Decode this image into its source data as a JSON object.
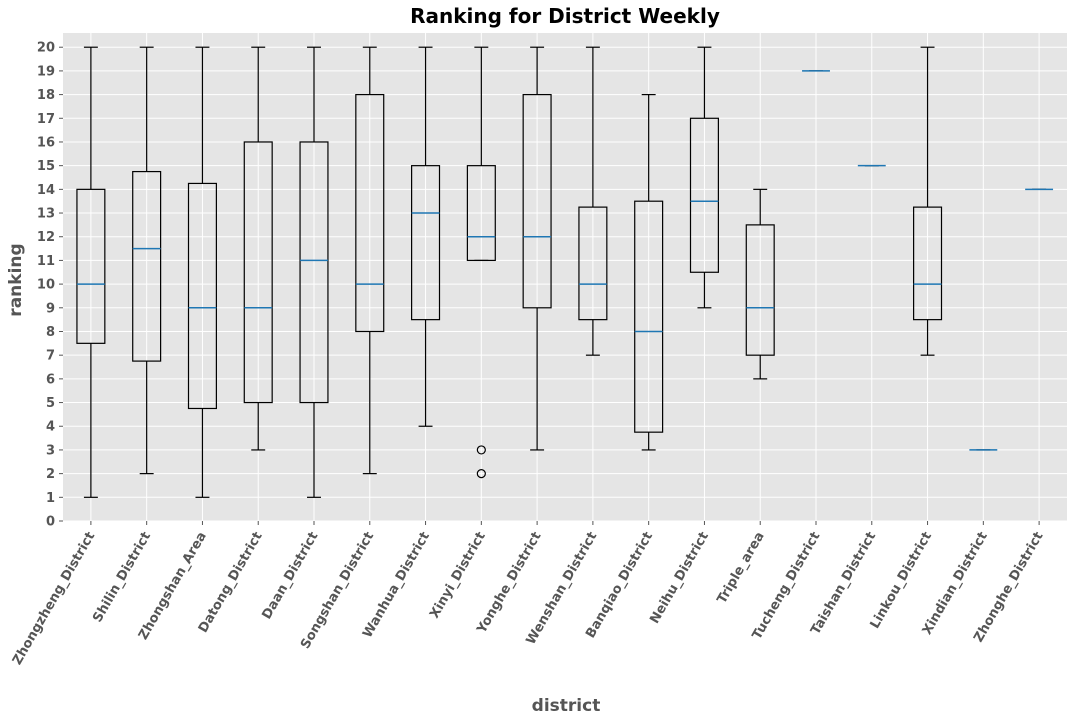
{
  "chart_data": {
    "type": "boxplot",
    "title": "Ranking for District Weekly",
    "xlabel": "district",
    "ylabel": "ranking",
    "ylim": [
      0,
      20.6
    ],
    "yticks": [
      0,
      1,
      2,
      3,
      4,
      5,
      6,
      7,
      8,
      9,
      10,
      11,
      12,
      13,
      14,
      15,
      16,
      17,
      18,
      19,
      20
    ],
    "grid": true,
    "categories": [
      "Zhongzheng_District",
      "Shilin_District",
      "Zhongshan_Area",
      "Datong_District",
      "Daan_District",
      "Songshan_District",
      "Wanhua_District",
      "Xinyi_District",
      "Yonghe_District",
      "Wenshan_District",
      "Banqiao_District",
      "Neihu_District",
      "Triple_area",
      "Tucheng_District",
      "Taishan_District",
      "Linkou_District",
      "Xindian_District",
      "Zhonghe_District"
    ],
    "boxes": [
      {
        "whislo": 1,
        "q1": 7.5,
        "med": 10,
        "q3": 14,
        "whishi": 20,
        "fliers": []
      },
      {
        "whislo": 2,
        "q1": 6.75,
        "med": 11.5,
        "q3": 14.75,
        "whishi": 20,
        "fliers": []
      },
      {
        "whislo": 1,
        "q1": 4.75,
        "med": 9,
        "q3": 14.25,
        "whishi": 20,
        "fliers": []
      },
      {
        "whislo": 3,
        "q1": 5,
        "med": 9,
        "q3": 16,
        "whishi": 20,
        "fliers": []
      },
      {
        "whislo": 1,
        "q1": 5,
        "med": 11,
        "q3": 16,
        "whishi": 20,
        "fliers": []
      },
      {
        "whislo": 2,
        "q1": 8,
        "med": 10,
        "q3": 18,
        "whishi": 20,
        "fliers": []
      },
      {
        "whislo": 4,
        "q1": 8.5,
        "med": 13,
        "q3": 15,
        "whishi": 20,
        "fliers": []
      },
      {
        "whislo": 11,
        "q1": 11,
        "med": 12,
        "q3": 15,
        "whishi": 20,
        "fliers": [
          3,
          2
        ]
      },
      {
        "whislo": 3,
        "q1": 9,
        "med": 12,
        "q3": 18,
        "whishi": 20,
        "fliers": []
      },
      {
        "whislo": 7,
        "q1": 8.5,
        "med": 10,
        "q3": 13.25,
        "whishi": 20,
        "fliers": []
      },
      {
        "whislo": 3,
        "q1": 3.75,
        "med": 8,
        "q3": 13.5,
        "whishi": 18,
        "fliers": []
      },
      {
        "whislo": 9,
        "q1": 10.5,
        "med": 13.5,
        "q3": 17,
        "whishi": 20,
        "fliers": []
      },
      {
        "whislo": 6,
        "q1": 7,
        "med": 9,
        "q3": 12.5,
        "whishi": 14,
        "fliers": []
      },
      {
        "whislo": 19,
        "q1": 19,
        "med": 19,
        "q3": 19,
        "whishi": 19,
        "fliers": []
      },
      {
        "whislo": 15,
        "q1": 15,
        "med": 15,
        "q3": 15,
        "whishi": 15,
        "fliers": []
      },
      {
        "whislo": 7,
        "q1": 8.5,
        "med": 10,
        "q3": 13.25,
        "whishi": 20,
        "fliers": []
      },
      {
        "whislo": 3,
        "q1": 3,
        "med": 3,
        "q3": 3,
        "whishi": 3,
        "fliers": []
      },
      {
        "whislo": 14,
        "q1": 14,
        "med": 14,
        "q3": 14,
        "whishi": 14,
        "fliers": []
      }
    ],
    "colors": {
      "background": "#e5e5e5",
      "grid": "#ffffff",
      "box": "#000000",
      "median": "#1f77b4",
      "text": "#555555"
    }
  }
}
